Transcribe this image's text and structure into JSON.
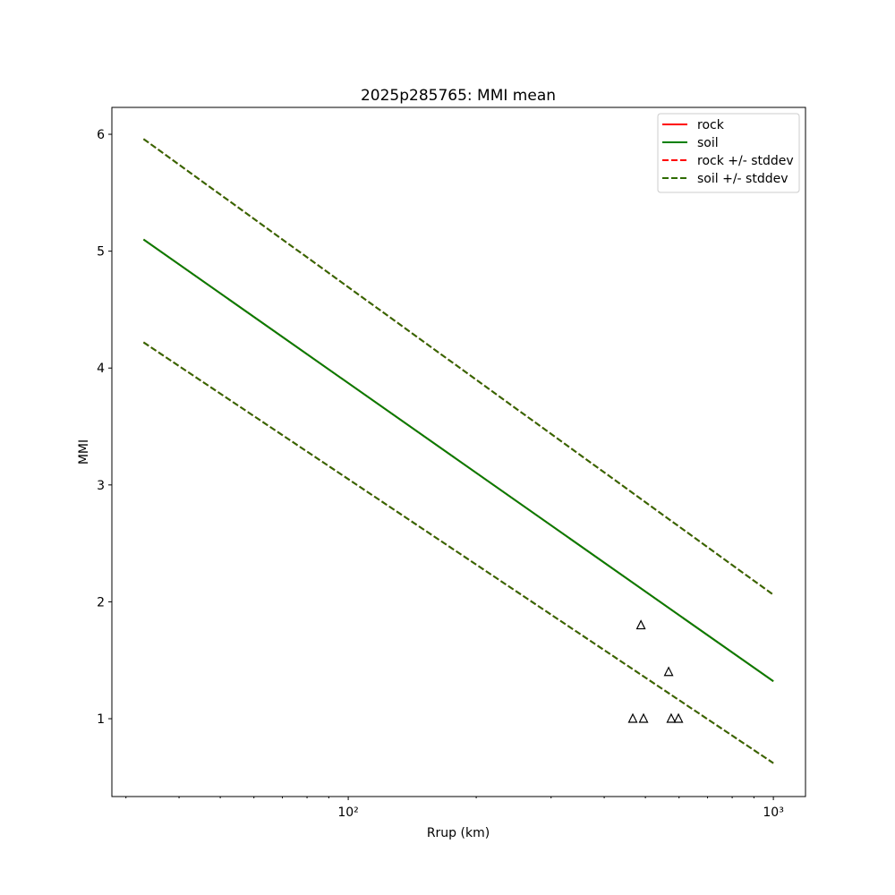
{
  "chart_data": {
    "type": "line",
    "title": "2025p285765: MMI mean",
    "xlabel": "Rrup (km)",
    "ylabel": "MMI",
    "xscale": "log",
    "xlim": [
      27.8,
      1190
    ],
    "ylim": [
      0.334,
      6.23
    ],
    "xticks": [
      {
        "value": 100,
        "label": "10²"
      },
      {
        "value": 1000,
        "label": "10³"
      }
    ],
    "xminorticks": [
      30,
      40,
      50,
      60,
      70,
      80,
      90,
      200,
      300,
      400,
      500,
      600,
      700,
      800,
      900
    ],
    "yticks": [
      1,
      2,
      3,
      4,
      5,
      6
    ],
    "legend": "upper right",
    "grid": false,
    "x": [
      33,
      1000
    ],
    "series": [
      {
        "name": "rock",
        "color": "#ff0000",
        "dash": false,
        "values": [
          5.1,
          1.32
        ]
      },
      {
        "name": "soil",
        "color": "#008000",
        "dash": false,
        "values": [
          5.1,
          1.32
        ]
      },
      {
        "name": "rock +/- stddev",
        "color": "#ff0000",
        "dash": true,
        "upper": [
          5.96,
          2.06
        ],
        "lower": [
          4.22,
          0.62
        ]
      },
      {
        "name": "soil +/- stddev",
        "color": "#2e6b00",
        "dash": true,
        "upper": [
          5.96,
          2.06
        ],
        "lower": [
          4.22,
          0.62
        ]
      }
    ],
    "observations": {
      "color": "#000000",
      "x": [
        467,
        495,
        488,
        567,
        575,
        598
      ],
      "values": [
        1.0,
        1.0,
        1.8,
        1.4,
        1.0,
        1.0
      ]
    }
  }
}
